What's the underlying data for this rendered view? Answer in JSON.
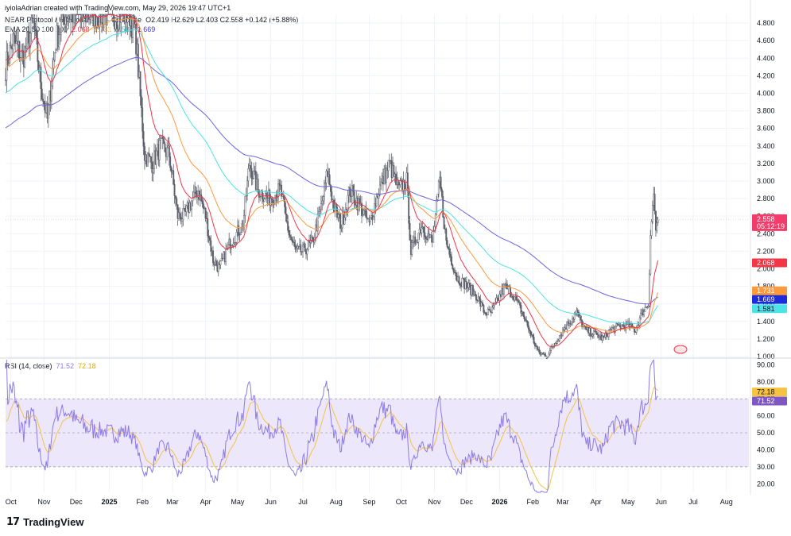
{
  "header": {
    "publisher": "iyiolaAdrian created with TradingView.com, May 29, 2026 19:47 UTC+1",
    "symbol": "NEAR Protocol / US Dollar · 1D · Coinbase",
    "ohlc": "O2.419 H2.629 L2.403 C2.558 +0.142 (+5.88%)",
    "ema_label": "EMA 20 50 100 200",
    "ema_values": [
      "2.068",
      "1.731",
      "1.581",
      "1.669"
    ],
    "rsi_label": "RSI (14, close)",
    "rsi_values": [
      "71.52",
      "72.18"
    ]
  },
  "colors": {
    "candle": "#5d606b",
    "ema20": "#f23645",
    "ema50": "#ff9a3c",
    "ema100": "#4de3e8",
    "ema200": "#6c63e0",
    "rsi": "#8c7ae6",
    "rsi_ma": "#f5c242",
    "rsi_band": "#ede7fb",
    "last_price": "#f23d6b"
  },
  "price_badges": {
    "last": "2.558",
    "countdown": "05:12:19",
    "ema20": "2.068",
    "ema50": "1.731",
    "ema200": "1.669",
    "ema100": "1.581",
    "rsi_ma": "72.18",
    "rsi": "71.52"
  },
  "footer": {
    "brand": "TradingView"
  },
  "chart_data": [
    {
      "type": "candlestick",
      "title": "NEAR Protocol / US Dollar · 1D · Coinbase",
      "ylim": [
        1.0,
        4.9
      ],
      "y_ticks": [
        "4.800",
        "4.600",
        "4.400",
        "4.200",
        "4.000",
        "3.800",
        "3.600",
        "3.400",
        "3.200",
        "3.000",
        "2.800",
        "2.600",
        "2.400",
        "2.200",
        "2.000",
        "1.800",
        "1.600",
        "1.400",
        "1.200",
        "1.000"
      ],
      "x_ticks": [
        "Oct",
        "Nov",
        "Dec",
        "2025",
        "Feb",
        "Mar",
        "Apr",
        "May",
        "Jun",
        "Jul",
        "Aug",
        "Sep",
        "Oct",
        "Nov",
        "Dec",
        "2026",
        "Feb",
        "Mar",
        "Apr",
        "May",
        "Jun",
        "Jul",
        "Aug"
      ],
      "x_tick_dates": [
        "2024-10-01",
        "2024-11-01",
        "2024-12-01",
        "2025-01-01",
        "2025-02-01",
        "2025-03-01",
        "2025-04-01",
        "2025-05-01",
        "2025-06-01",
        "2025-07-01",
        "2025-08-01",
        "2025-09-01",
        "2025-10-01",
        "2025-11-01",
        "2025-12-01",
        "2026-01-01",
        "2026-02-01",
        "2026-03-01",
        "2026-04-01",
        "2026-05-01",
        "2026-06-01",
        "2026-07-01",
        "2026-08-01"
      ],
      "last_close": 2.558,
      "price_anchors": [
        [
          "2024-09-26",
          4.3
        ],
        [
          "2024-10-03",
          4.6
        ],
        [
          "2024-10-12",
          4.4
        ],
        [
          "2024-10-22",
          4.8
        ],
        [
          "2024-10-29",
          4.1
        ],
        [
          "2024-11-04",
          3.7
        ],
        [
          "2024-11-12",
          4.6
        ],
        [
          "2024-11-20",
          4.9
        ],
        [
          "2024-12-05",
          4.9
        ],
        [
          "2024-12-20",
          4.9
        ],
        [
          "2025-01-06",
          4.9
        ],
        [
          "2025-01-20",
          4.9
        ],
        [
          "2025-01-26",
          4.6
        ],
        [
          "2025-02-03",
          3.3
        ],
        [
          "2025-02-10",
          3.2
        ],
        [
          "2025-02-18",
          3.4
        ],
        [
          "2025-02-26",
          3.3
        ],
        [
          "2025-03-06",
          2.6
        ],
        [
          "2025-03-12",
          2.6
        ],
        [
          "2025-03-20",
          2.8
        ],
        [
          "2025-03-25",
          2.9
        ],
        [
          "2025-04-01",
          2.6
        ],
        [
          "2025-04-08",
          2.1
        ],
        [
          "2025-04-14",
          2.0
        ],
        [
          "2025-04-24",
          2.3
        ],
        [
          "2025-05-06",
          2.5
        ],
        [
          "2025-05-12",
          3.2
        ],
        [
          "2025-05-20",
          2.9
        ],
        [
          "2025-05-30",
          2.8
        ],
        [
          "2025-06-10",
          2.9
        ],
        [
          "2025-06-18",
          2.4
        ],
        [
          "2025-06-24",
          2.2
        ],
        [
          "2025-07-01",
          2.2
        ],
        [
          "2025-07-10",
          2.3
        ],
        [
          "2025-07-18",
          2.7
        ],
        [
          "2025-07-24",
          3.1
        ],
        [
          "2025-07-30",
          2.7
        ],
        [
          "2025-08-06",
          2.5
        ],
        [
          "2025-08-14",
          2.9
        ],
        [
          "2025-08-24",
          2.7
        ],
        [
          "2025-09-01",
          2.5
        ],
        [
          "2025-09-10",
          2.9
        ],
        [
          "2025-09-20",
          3.2
        ],
        [
          "2025-09-28",
          2.9
        ],
        [
          "2025-10-06",
          3.0
        ],
        [
          "2025-10-10",
          2.2
        ],
        [
          "2025-10-20",
          2.5
        ],
        [
          "2025-10-30",
          2.3
        ],
        [
          "2025-11-06",
          3.0
        ],
        [
          "2025-11-12",
          2.3
        ],
        [
          "2025-11-22",
          1.9
        ],
        [
          "2025-12-02",
          1.8
        ],
        [
          "2025-12-10",
          1.7
        ],
        [
          "2025-12-18",
          1.5
        ],
        [
          "2025-12-24",
          1.5
        ],
        [
          "2026-01-06",
          1.8
        ],
        [
          "2026-01-14",
          1.7
        ],
        [
          "2026-01-22",
          1.5
        ],
        [
          "2026-02-01",
          1.2
        ],
        [
          "2026-02-06",
          1.05
        ],
        [
          "2026-02-14",
          1.0
        ],
        [
          "2026-02-24",
          1.2
        ],
        [
          "2026-03-04",
          1.35
        ],
        [
          "2026-03-14",
          1.5
        ],
        [
          "2026-03-22",
          1.3
        ],
        [
          "2026-04-01",
          1.25
        ],
        [
          "2026-04-08",
          1.2
        ],
        [
          "2026-04-14",
          1.3
        ],
        [
          "2026-04-24",
          1.35
        ],
        [
          "2026-05-02",
          1.35
        ],
        [
          "2026-05-08",
          1.3
        ],
        [
          "2026-05-14",
          1.5
        ],
        [
          "2026-05-20",
          1.6
        ],
        [
          "2026-05-22",
          2.4
        ],
        [
          "2026-05-25",
          2.85
        ],
        [
          "2026-05-27",
          2.45
        ],
        [
          "2026-05-29",
          2.558
        ]
      ],
      "series": [
        {
          "name": "EMA 20",
          "last": 2.068
        },
        {
          "name": "EMA 50",
          "last": 1.731
        },
        {
          "name": "EMA 100",
          "last": 1.581
        },
        {
          "name": "EMA 200",
          "last": 1.669
        }
      ]
    },
    {
      "type": "line",
      "title": "RSI (14, close)",
      "ylim": [
        15,
        93
      ],
      "y_ticks": [
        "90.00",
        "80.00",
        "70.00",
        "60.00",
        "50.00",
        "40.00",
        "30.00",
        "20.00"
      ],
      "band": [
        30,
        70
      ],
      "series": [
        {
          "name": "RSI",
          "last": 71.52
        },
        {
          "name": "RSI MA",
          "last": 72.18
        }
      ]
    }
  ]
}
